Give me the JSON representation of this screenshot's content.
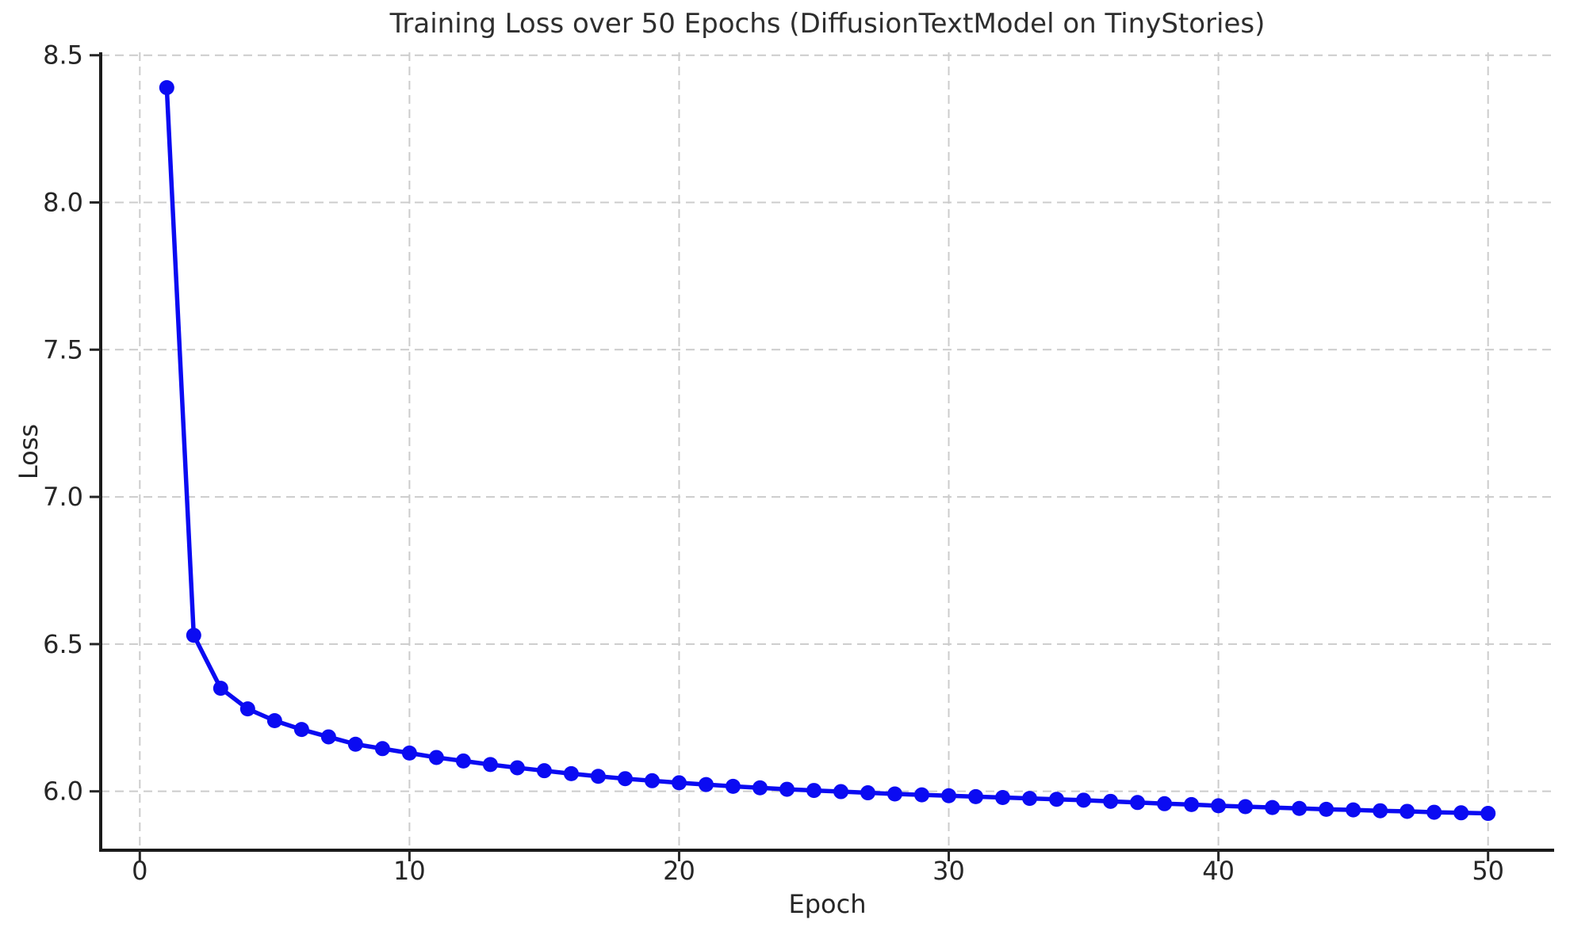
{
  "chart_data": {
    "type": "line",
    "title": "Training Loss over 50 Epochs (DiffusionTextModel on TinyStories)",
    "xlabel": "Epoch",
    "ylabel": "Loss",
    "x": [
      1,
      2,
      3,
      4,
      5,
      6,
      7,
      8,
      9,
      10,
      11,
      12,
      13,
      14,
      15,
      16,
      17,
      18,
      19,
      20,
      21,
      22,
      23,
      24,
      25,
      26,
      27,
      28,
      29,
      30,
      31,
      32,
      33,
      34,
      35,
      36,
      37,
      38,
      39,
      40,
      41,
      42,
      43,
      44,
      45,
      46,
      47,
      48,
      49,
      50
    ],
    "series": [
      {
        "name": "Training Loss",
        "values": [
          8.39,
          6.53,
          6.35,
          6.28,
          6.24,
          6.21,
          6.185,
          6.16,
          6.145,
          6.13,
          6.115,
          6.103,
          6.091,
          6.08,
          6.07,
          6.06,
          6.051,
          6.043,
          6.036,
          6.029,
          6.023,
          6.017,
          6.012,
          6.007,
          6.003,
          5.999,
          5.995,
          5.991,
          5.988,
          5.985,
          5.982,
          5.979,
          5.976,
          5.973,
          5.97,
          5.966,
          5.962,
          5.958,
          5.955,
          5.951,
          5.948,
          5.945,
          5.942,
          5.939,
          5.937,
          5.934,
          5.932,
          5.929,
          5.927,
          5.925
        ]
      }
    ],
    "xlim": [
      -1.45,
      52.45
    ],
    "ylim": [
      5.8,
      8.51
    ],
    "xticks": [
      0,
      10,
      20,
      30,
      40,
      50
    ],
    "yticks": [
      6.0,
      6.5,
      7.0,
      7.5,
      8.0,
      8.5
    ],
    "grid": true,
    "grid_linestyle": "dashed",
    "legend": "none",
    "colors": {
      "line": "#0b0bf2",
      "marker": "#0b0bf2",
      "grid": "#cccccc",
      "spine": "#1a1a1a",
      "tick": "#262626",
      "text": "#262626",
      "background": "#ffffff"
    }
  }
}
